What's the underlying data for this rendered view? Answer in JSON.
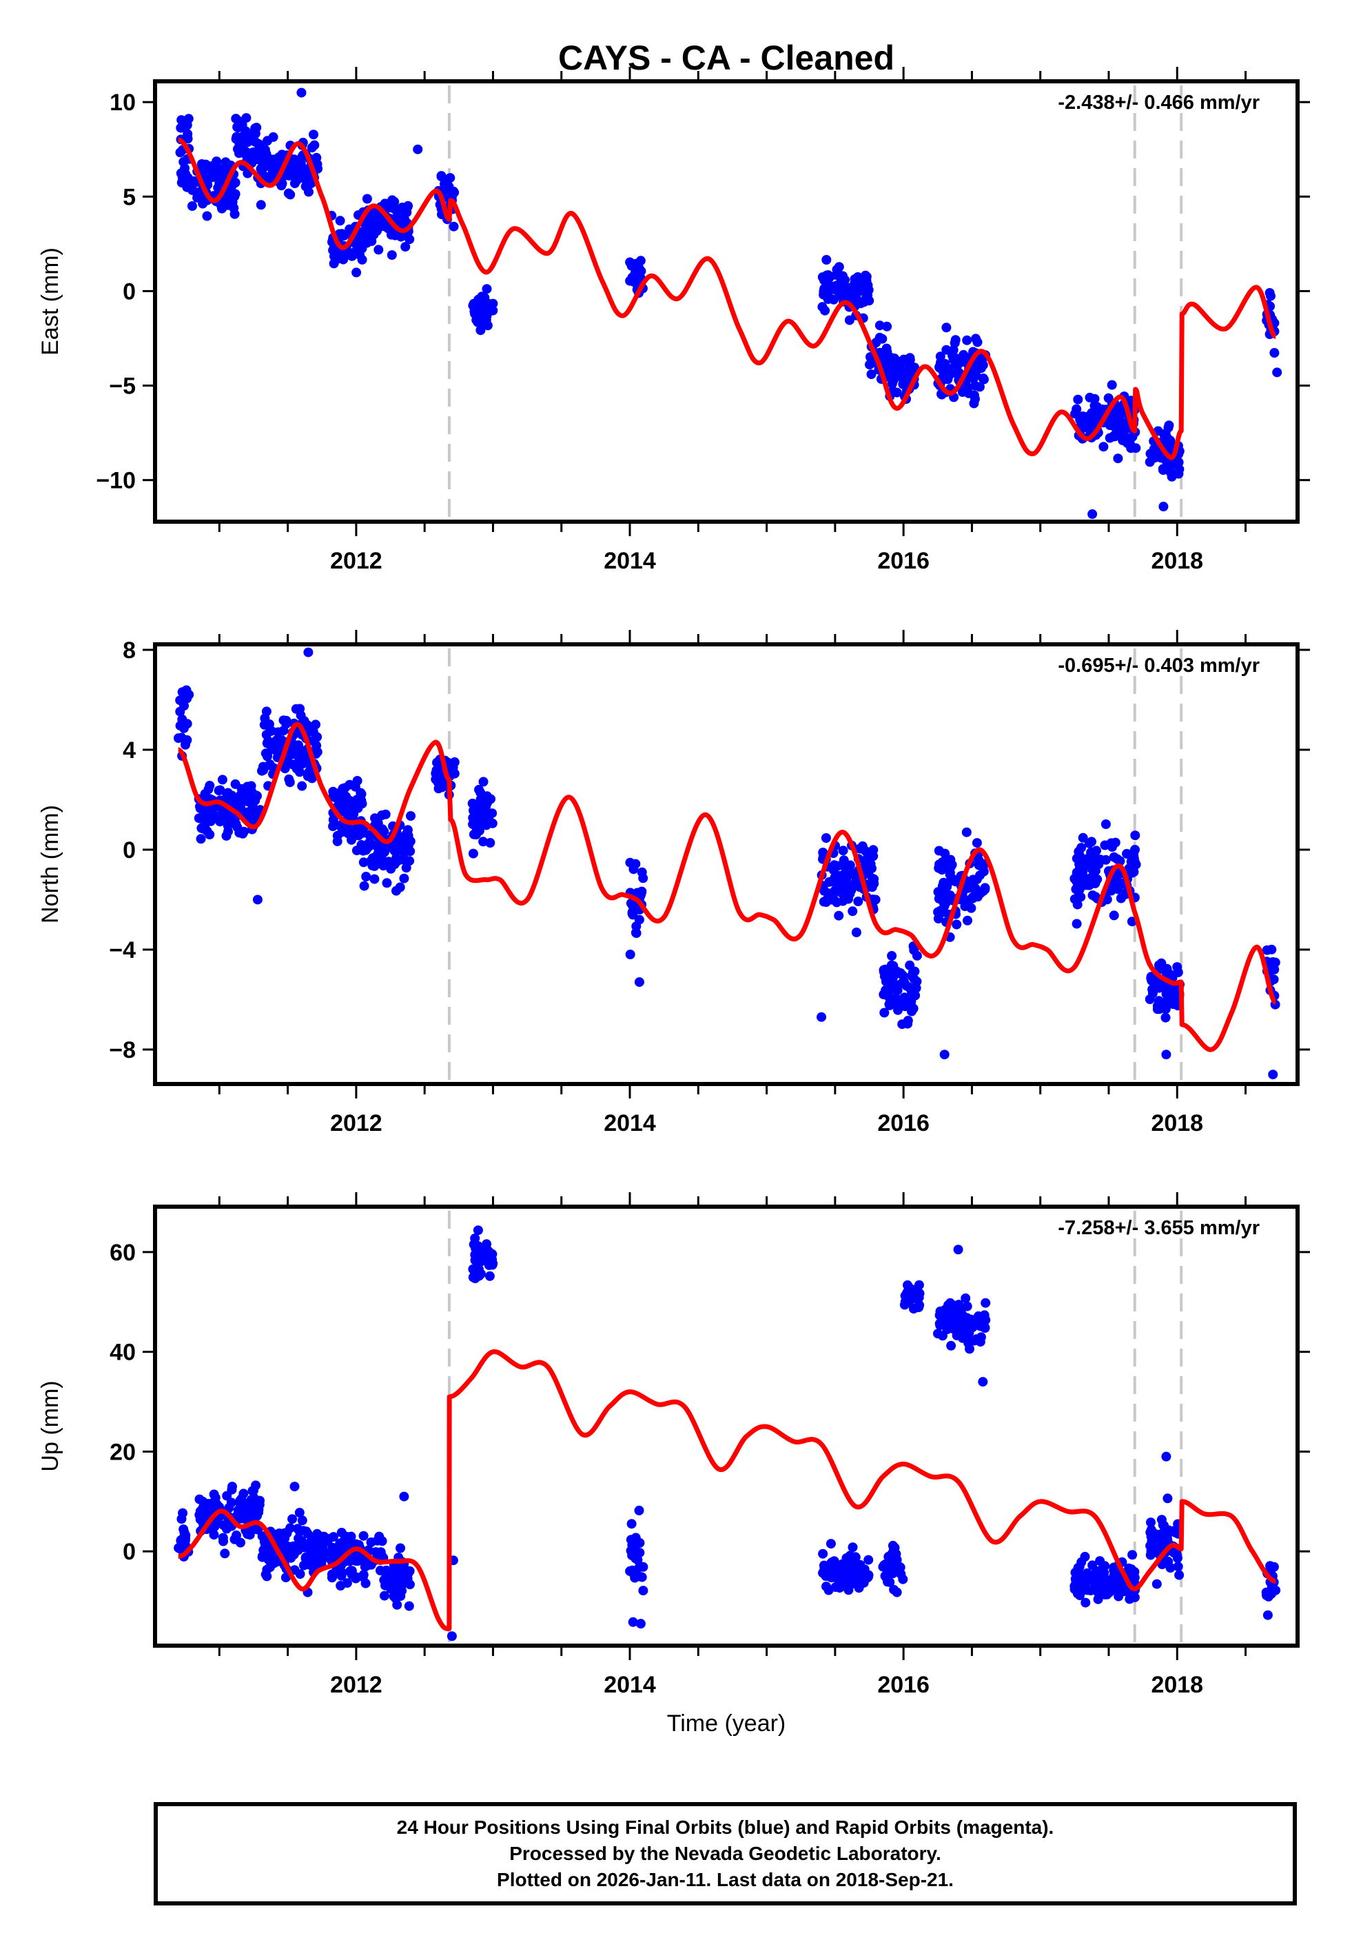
{
  "title": "CAYS  - CA - Cleaned",
  "xlabel": "Time (year)",
  "footer": {
    "line1": "24 Hour Positions Using Final Orbits (blue) and Rapid Orbits (magenta).",
    "line2": "Processed by the Nevada Geodetic Laboratory.",
    "line3": "Plotted on 2026-Jan-11. Last data on 2018-Sep-21."
  },
  "colors": {
    "final_orbits": "#0000ff",
    "model": "#ff0000",
    "steps": "#c8c8c8",
    "frame": "#000000"
  },
  "chart_data": [
    {
      "type": "scatter",
      "name": "east",
      "ylabel": "East (mm)",
      "rate_label": "-2.438+/- 0.466 mm/yr",
      "xlim": [
        2010.53,
        2018.88
      ],
      "ylim": [
        -12.2,
        11.1
      ],
      "xticks": [
        2012,
        2014,
        2016,
        2018
      ],
      "xtick_labels": [
        "2012",
        "2014",
        "2016",
        "2018"
      ],
      "yticks": [
        10,
        5,
        0,
        -5,
        -10
      ],
      "ytick_labels": [
        "10",
        "5",
        "0",
        "−5",
        "−10"
      ],
      "step_epochs": [
        2012.68,
        2017.69,
        2018.03
      ],
      "clusters": [
        {
          "x": [
            2010.7,
            2010.78
          ],
          "center": 7.5,
          "spread": 2.8
        },
        {
          "x": [
            2010.8,
            2011.12
          ],
          "center": 5.6,
          "spread": 1.5
        },
        {
          "x": [
            2011.12,
            2011.3
          ],
          "center": 7.6,
          "spread": 1.6
        },
        {
          "x": [
            2011.3,
            2011.72
          ],
          "center": 6.6,
          "spread": 1.3
        },
        {
          "x": [
            2011.82,
            2012.05
          ],
          "center": 2.4,
          "spread": 1.3
        },
        {
          "x": [
            2012.05,
            2012.4
          ],
          "center": 3.6,
          "spread": 1.3
        },
        {
          "x": [
            2012.6,
            2012.72
          ],
          "center": 4.8,
          "spread": 1.2
        },
        {
          "x": [
            2012.85,
            2013.0
          ],
          "center": -1.0,
          "spread": 1.3
        },
        {
          "x": [
            2014.0,
            2014.1
          ],
          "center": 0.8,
          "spread": 1.3
        },
        {
          "x": [
            2015.4,
            2015.75
          ],
          "center": 0.0,
          "spread": 1.2
        },
        {
          "x": [
            2015.75,
            2015.9
          ],
          "center": -3.5,
          "spread": 1.5
        },
        {
          "x": [
            2015.9,
            2016.1
          ],
          "center": -4.5,
          "spread": 1.3
        },
        {
          "x": [
            2016.25,
            2016.6
          ],
          "center": -4.2,
          "spread": 1.6
        },
        {
          "x": [
            2017.25,
            2017.7
          ],
          "center": -6.8,
          "spread": 1.6
        },
        {
          "x": [
            2017.8,
            2018.02
          ],
          "center": -8.5,
          "spread": 1.3
        },
        {
          "x": [
            2018.65,
            2018.72
          ],
          "center": -1.5,
          "spread": 1.5
        }
      ],
      "outliers": [
        [
          2011.6,
          10.5
        ],
        [
          2012.45,
          7.5
        ],
        [
          2017.38,
          -11.8
        ],
        [
          2017.9,
          -11.4
        ],
        [
          2018.73,
          -4.3
        ]
      ],
      "model": {
        "x": [
          2010.7,
          2010.95,
          2011.15,
          2011.38,
          2011.58,
          2011.75,
          2011.9,
          2012.12,
          2012.35,
          2012.58,
          2012.68,
          2012.69,
          2012.78,
          2012.95,
          2013.15,
          2013.4,
          2013.58,
          2013.8,
          2013.95,
          2014.15,
          2014.35,
          2014.58,
          2014.8,
          2014.95,
          2015.15,
          2015.35,
          2015.58,
          2015.8,
          2015.95,
          2016.15,
          2016.35,
          2016.58,
          2016.8,
          2016.95,
          2017.15,
          2017.35,
          2017.58,
          2017.69,
          2017.695,
          2017.75,
          2017.95,
          2018.03,
          2018.035,
          2018.12,
          2018.35,
          2018.58,
          2018.72
        ],
        "y": [
          8.0,
          4.8,
          6.8,
          5.6,
          7.8,
          5.0,
          2.3,
          4.5,
          3.2,
          5.3,
          3.8,
          4.8,
          3.5,
          1.0,
          3.3,
          2.0,
          4.1,
          0.5,
          -1.3,
          0.8,
          -0.4,
          1.7,
          -2.0,
          -3.8,
          -1.6,
          -2.9,
          -0.6,
          -3.5,
          -6.2,
          -4.0,
          -5.4,
          -3.2,
          -7.0,
          -8.6,
          -6.4,
          -7.8,
          -5.6,
          -7.4,
          -5.2,
          -6.5,
          -8.8,
          -7.4,
          -1.2,
          -0.7,
          -2.0,
          0.2,
          -2.4
        ]
      }
    },
    {
      "type": "scatter",
      "name": "north",
      "ylabel": "North (mm)",
      "rate_label": "-0.695+/- 0.403 mm/yr",
      "xlim": [
        2010.53,
        2018.88
      ],
      "ylim": [
        -9.38,
        8.22
      ],
      "xticks": [
        2012,
        2014,
        2016,
        2018
      ],
      "xtick_labels": [
        "2012",
        "2014",
        "2016",
        "2018"
      ],
      "yticks": [
        8,
        4,
        0,
        -4,
        -8
      ],
      "ytick_labels": [
        "8",
        "4",
        "0",
        "−4",
        "−8"
      ],
      "step_epochs": [
        2012.68,
        2017.69,
        2018.03
      ],
      "clusters": [
        {
          "x": [
            2010.7,
            2010.78
          ],
          "center": 5.3,
          "spread": 1.8
        },
        {
          "x": [
            2010.85,
            2011.3
          ],
          "center": 1.5,
          "spread": 1.3
        },
        {
          "x": [
            2011.3,
            2011.72
          ],
          "center": 4.0,
          "spread": 1.6
        },
        {
          "x": [
            2011.82,
            2012.05
          ],
          "center": 1.5,
          "spread": 1.3
        },
        {
          "x": [
            2012.05,
            2012.4
          ],
          "center": 0.0,
          "spread": 1.4
        },
        {
          "x": [
            2012.58,
            2012.72
          ],
          "center": 3.0,
          "spread": 0.8
        },
        {
          "x": [
            2012.85,
            2013.0
          ],
          "center": 1.5,
          "spread": 1.3
        },
        {
          "x": [
            2014.0,
            2014.1
          ],
          "center": -1.8,
          "spread": 1.6
        },
        {
          "x": [
            2015.4,
            2015.8
          ],
          "center": -1.2,
          "spread": 1.6
        },
        {
          "x": [
            2015.85,
            2016.1
          ],
          "center": -5.5,
          "spread": 1.4
        },
        {
          "x": [
            2016.25,
            2016.6
          ],
          "center": -1.5,
          "spread": 1.8
        },
        {
          "x": [
            2017.25,
            2017.7
          ],
          "center": -1.0,
          "spread": 1.8
        },
        {
          "x": [
            2017.8,
            2018.02
          ],
          "center": -5.6,
          "spread": 1.2
        },
        {
          "x": [
            2018.65,
            2018.72
          ],
          "center": -5.0,
          "spread": 1.5
        }
      ],
      "outliers": [
        [
          2011.65,
          7.9
        ],
        [
          2011.28,
          -2.0
        ],
        [
          2015.4,
          -6.7
        ],
        [
          2016.3,
          -8.2
        ],
        [
          2017.92,
          -8.2
        ],
        [
          2018.7,
          -9.0
        ],
        [
          2014.07,
          -5.3
        ]
      ],
      "model": {
        "x": [
          2010.7,
          2010.85,
          2011.0,
          2011.12,
          2011.28,
          2011.45,
          2011.58,
          2011.75,
          2011.9,
          2012.05,
          2012.12,
          2012.25,
          2012.4,
          2012.58,
          2012.68,
          2012.69,
          2012.8,
          2012.95,
          2013.05,
          2013.25,
          2013.55,
          2013.8,
          2013.95,
          2014.05,
          2014.25,
          2014.55,
          2014.8,
          2014.95,
          2015.05,
          2015.25,
          2015.55,
          2015.8,
          2015.95,
          2016.05,
          2016.25,
          2016.55,
          2016.8,
          2016.95,
          2017.05,
          2017.25,
          2017.55,
          2017.69,
          2017.8,
          2017.95,
          2018.03,
          2018.035,
          2018.25,
          2018.4,
          2018.58,
          2018.72
        ],
        "y": [
          4.0,
          2.0,
          1.9,
          1.5,
          1.0,
          3.5,
          5.0,
          2.5,
          1.2,
          1.1,
          0.8,
          0.4,
          2.5,
          4.3,
          2.8,
          1.2,
          -1.0,
          -1.2,
          -1.2,
          -2.0,
          2.1,
          -1.6,
          -1.8,
          -2.0,
          -2.7,
          1.4,
          -2.5,
          -2.6,
          -2.8,
          -3.4,
          0.7,
          -3.0,
          -3.2,
          -3.4,
          -4.1,
          0.0,
          -3.6,
          -3.8,
          -4.0,
          -4.7,
          -0.7,
          -2.5,
          -4.6,
          -5.3,
          -5.3,
          -7.0,
          -8.0,
          -6.5,
          -3.9,
          -6.1
        ]
      }
    },
    {
      "type": "scatter",
      "name": "up",
      "ylabel": "Up (mm)",
      "rate_label": "-7.258+/- 3.655 mm/yr",
      "xlim": [
        2010.53,
        2018.88
      ],
      "ylim": [
        -18.9,
        69.1
      ],
      "xticks": [
        2012,
        2014,
        2016,
        2018
      ],
      "xtick_labels": [
        "2012",
        "2014",
        "2016",
        "2018"
      ],
      "yticks": [
        60,
        40,
        20,
        0
      ],
      "ytick_labels": [
        "60",
        "40",
        "20",
        "0"
      ],
      "step_epochs": [
        2012.68,
        2017.69,
        2018.03
      ],
      "clusters": [
        {
          "x": [
            2010.7,
            2010.78
          ],
          "center": 2.0,
          "spread": 6.0
        },
        {
          "x": [
            2010.85,
            2011.3
          ],
          "center": 7.0,
          "spread": 5.5
        },
        {
          "x": [
            2011.3,
            2011.8
          ],
          "center": 0.0,
          "spread": 5.5
        },
        {
          "x": [
            2011.82,
            2012.2
          ],
          "center": -1.0,
          "spread": 5.0
        },
        {
          "x": [
            2012.2,
            2012.4
          ],
          "center": -5.0,
          "spread": 5.0
        },
        {
          "x": [
            2012.85,
            2013.0
          ],
          "center": 59.0,
          "spread": 5.0
        },
        {
          "x": [
            2014.0,
            2014.1
          ],
          "center": -2.0,
          "spread": 8.0
        },
        {
          "x": [
            2015.4,
            2015.75
          ],
          "center": -4.0,
          "spread": 4.5
        },
        {
          "x": [
            2015.85,
            2016.0
          ],
          "center": -3.0,
          "spread": 5.0
        },
        {
          "x": [
            2016.0,
            2016.12
          ],
          "center": 51.0,
          "spread": 3.5
        },
        {
          "x": [
            2016.25,
            2016.6
          ],
          "center": 46.0,
          "spread": 4.0
        },
        {
          "x": [
            2017.25,
            2017.7
          ],
          "center": -6.0,
          "spread": 4.5
        },
        {
          "x": [
            2017.8,
            2018.02
          ],
          "center": 1.0,
          "spread": 6.0
        },
        {
          "x": [
            2018.65,
            2018.72
          ],
          "center": -6.0,
          "spread": 6.0
        }
      ],
      "outliers": [
        [
          2012.7,
          -17.0
        ],
        [
          2012.71,
          -1.8
        ],
        [
          2016.4,
          60.5
        ],
        [
          2016.58,
          34.0
        ],
        [
          2017.92,
          19.0
        ],
        [
          2014.08,
          -14.5
        ],
        [
          2011.55,
          13.0
        ],
        [
          2012.35,
          11.0
        ]
      ],
      "model": {
        "x": [
          2010.7,
          2010.8,
          2011.0,
          2011.15,
          2011.3,
          2011.45,
          2011.6,
          2011.72,
          2011.85,
          2012.0,
          2012.15,
          2012.3,
          2012.45,
          2012.6,
          2012.68,
          2012.681,
          2012.75,
          2012.85,
          2013.0,
          2013.2,
          2013.4,
          2013.65,
          2013.85,
          2014.0,
          2014.2,
          2014.4,
          2014.65,
          2014.85,
          2015.0,
          2015.2,
          2015.4,
          2015.65,
          2015.85,
          2016.0,
          2016.2,
          2016.4,
          2016.65,
          2016.85,
          2017.0,
          2017.2,
          2017.4,
          2017.6,
          2017.69,
          2017.8,
          2017.95,
          2018.03,
          2018.035,
          2018.2,
          2018.4,
          2018.55,
          2018.72
        ],
        "y": [
          -1.0,
          1.0,
          8.0,
          5.0,
          5.5,
          -1.0,
          -7.5,
          -4.0,
          -2.5,
          0.5,
          -2.0,
          -2.0,
          -3.0,
          -13.5,
          -15.5,
          31.0,
          32.0,
          35.0,
          40.0,
          37.0,
          37.0,
          23.5,
          29.0,
          32.0,
          29.5,
          29.0,
          16.5,
          23.0,
          25.0,
          22.0,
          21.5,
          9.0,
          15.0,
          17.5,
          15.0,
          14.0,
          2.0,
          7.0,
          10.0,
          8.0,
          7.0,
          -4.0,
          -7.5,
          -4.0,
          1.0,
          0.5,
          10.0,
          7.5,
          7.0,
          0.0,
          -6.0
        ]
      }
    }
  ]
}
